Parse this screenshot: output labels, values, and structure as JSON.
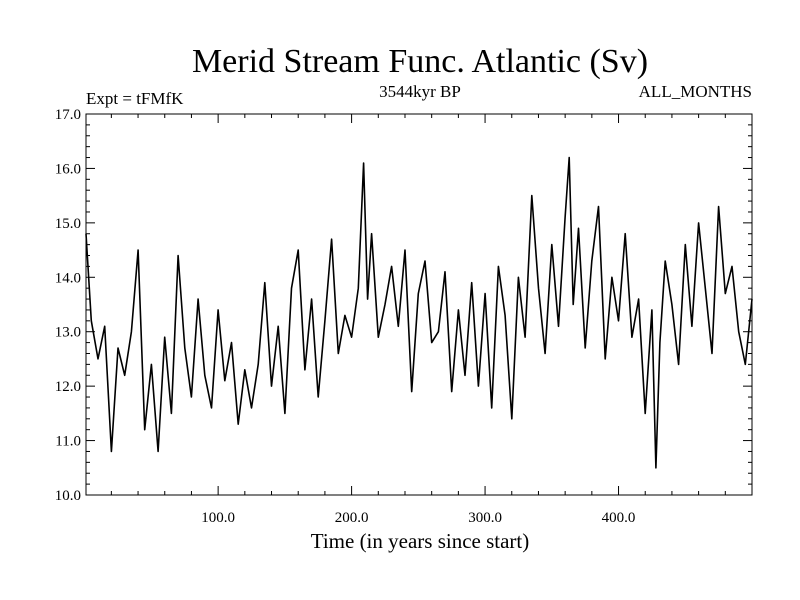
{
  "chart_data": {
    "type": "line",
    "title": "Merid Stream Func. Atlantic (Sv)",
    "subtitle_left": "Expt = tFMfK",
    "subtitle_center": "3544kyr BP",
    "subtitle_right": "ALL_MONTHS",
    "xlabel": "Time (in years since start)",
    "ylabel": "",
    "xlim": [
      1,
      500
    ],
    "ylim": [
      10.0,
      17.0
    ],
    "x_ticks": [
      100,
      200,
      300,
      400
    ],
    "x_tick_labels": [
      "100.0",
      "200.0",
      "300.0",
      "400.0"
    ],
    "y_ticks": [
      10,
      11,
      12,
      13,
      14,
      15,
      16,
      17
    ],
    "y_tick_labels": [
      "10.0",
      "11.0",
      "12.0",
      "13.0",
      "14.0",
      "15.0",
      "16.0",
      "17.0"
    ],
    "series": [
      {
        "name": "tFMfK",
        "color": "#000000",
        "x": [
          1,
          5,
          10,
          15,
          20,
          25,
          30,
          35,
          40,
          45,
          50,
          55,
          60,
          65,
          70,
          75,
          80,
          85,
          90,
          95,
          100,
          105,
          110,
          115,
          120,
          125,
          130,
          135,
          140,
          145,
          150,
          155,
          160,
          165,
          170,
          175,
          180,
          185,
          190,
          195,
          200,
          205,
          209,
          212,
          215,
          220,
          225,
          230,
          235,
          240,
          245,
          250,
          255,
          260,
          265,
          270,
          275,
          280,
          285,
          290,
          295,
          300,
          305,
          310,
          315,
          320,
          325,
          330,
          335,
          340,
          345,
          350,
          355,
          360,
          363,
          366,
          370,
          375,
          380,
          385,
          390,
          395,
          400,
          405,
          410,
          415,
          420,
          425,
          428,
          431,
          435,
          440,
          445,
          450,
          455,
          460,
          465,
          470,
          475,
          480,
          485,
          490,
          495,
          500
        ],
        "values": [
          14.8,
          13.2,
          12.5,
          13.1,
          10.8,
          12.7,
          12.2,
          13.0,
          14.5,
          11.2,
          12.4,
          10.8,
          12.9,
          11.5,
          14.4,
          12.7,
          11.8,
          13.6,
          12.2,
          11.6,
          13.4,
          12.1,
          12.8,
          11.3,
          12.3,
          11.6,
          12.4,
          13.9,
          12.0,
          13.1,
          11.5,
          13.8,
          14.5,
          12.3,
          13.6,
          11.8,
          13.2,
          14.7,
          12.6,
          13.3,
          12.9,
          13.8,
          16.1,
          13.6,
          14.8,
          12.9,
          13.5,
          14.2,
          13.1,
          14.5,
          11.9,
          13.7,
          14.3,
          12.8,
          13.0,
          14.1,
          11.9,
          13.4,
          12.2,
          13.9,
          12.0,
          13.7,
          11.6,
          14.2,
          13.3,
          11.4,
          14.0,
          12.9,
          15.5,
          13.8,
          12.6,
          14.6,
          13.1,
          15.1,
          16.2,
          13.5,
          14.9,
          12.7,
          14.3,
          15.3,
          12.5,
          14.0,
          13.2,
          14.8,
          12.9,
          13.6,
          11.5,
          13.4,
          10.5,
          12.8,
          14.3,
          13.5,
          12.4,
          14.6,
          13.1,
          15.0,
          13.8,
          12.6,
          15.3,
          13.7,
          14.2,
          13.0,
          12.4,
          13.6
        ]
      }
    ]
  }
}
